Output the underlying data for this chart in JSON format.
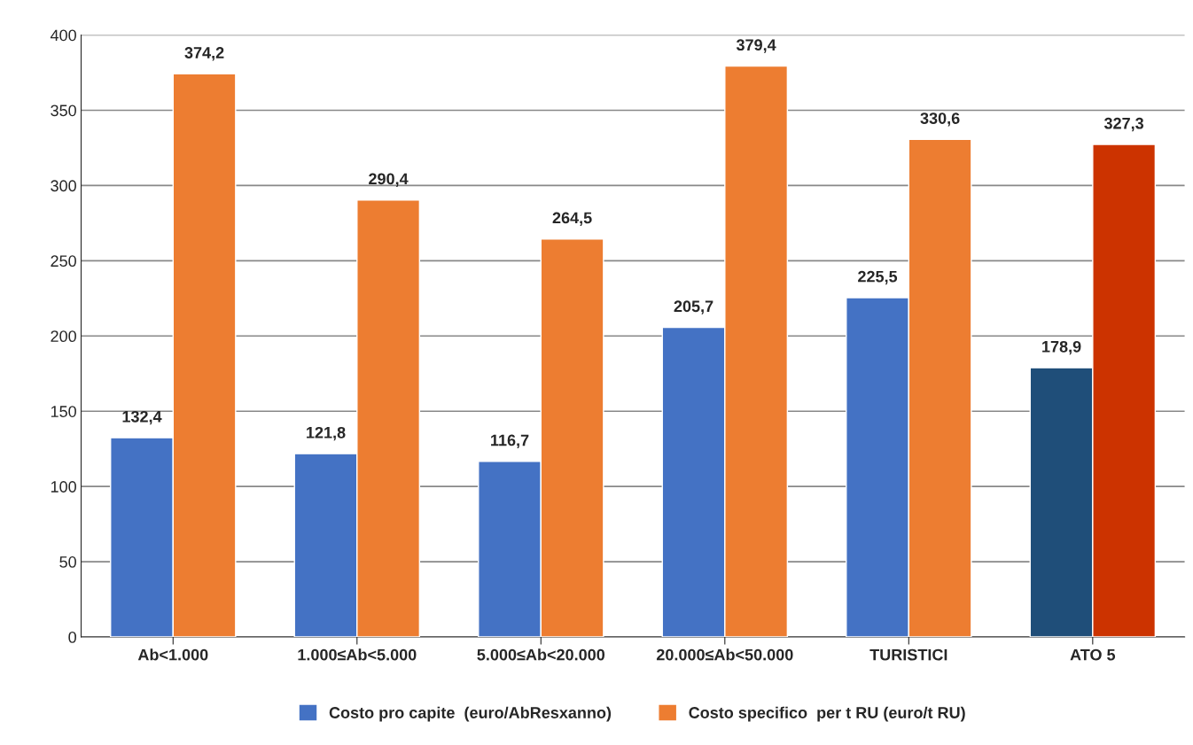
{
  "chart_data": {
    "type": "bar",
    "categories": [
      "Ab<1.000",
      "1.000≤Ab<5.000",
      "5.000≤Ab<20.000",
      "20.000≤Ab<50.000",
      "TURISTICI",
      "ATO 5"
    ],
    "series": [
      {
        "name": "Costo pro capite  (euro/AbResxanno)",
        "color": "#4472c4",
        "colors": [
          "#4472c4",
          "#4472c4",
          "#4472c4",
          "#4472c4",
          "#4472c4",
          "#1f4e79"
        ],
        "values": [
          132.4,
          121.8,
          116.7,
          205.7,
          225.5,
          178.9
        ],
        "value_labels": [
          "132,4",
          "121,8",
          "116,7",
          "205,7",
          "225,5",
          "178,9"
        ]
      },
      {
        "name": "Costo specifico  per t RU (euro/t RU)",
        "color": "#ed7d31",
        "colors": [
          "#ed7d31",
          "#ed7d31",
          "#ed7d31",
          "#ed7d31",
          "#ed7d31",
          "#cc3300"
        ],
        "values": [
          374.2,
          290.4,
          264.5,
          379.4,
          330.6,
          327.3
        ],
        "value_labels": [
          "374,2",
          "290,4",
          "264,5",
          "379,4",
          "330,6",
          "327,3"
        ]
      }
    ],
    "ylim": [
      0,
      400
    ],
    "yticks": [
      0,
      50,
      100,
      150,
      200,
      250,
      300,
      350,
      400
    ],
    "grid": "y",
    "legend": "bottom"
  }
}
